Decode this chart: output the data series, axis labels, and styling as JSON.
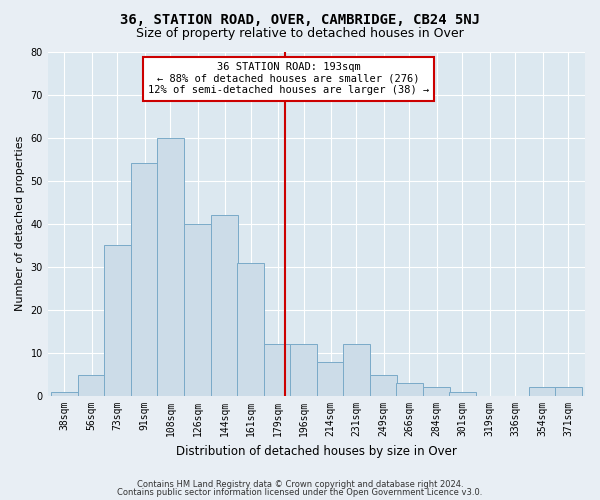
{
  "title": "36, STATION ROAD, OVER, CAMBRIDGE, CB24 5NJ",
  "subtitle": "Size of property relative to detached houses in Over",
  "xlabel": "Distribution of detached houses by size in Over",
  "ylabel": "Number of detached properties",
  "bar_color": "#ccdce8",
  "bar_edge_color": "#7aaac8",
  "vline_color": "#cc0000",
  "vline_x": 193,
  "annotation_text": "36 STATION ROAD: 193sqm\n← 88% of detached houses are smaller (276)\n12% of semi-detached houses are larger (38) →",
  "annotation_box_color": "#ffffff",
  "annotation_box_edge": "#cc0000",
  "bins": [
    38,
    56,
    73,
    91,
    108,
    126,
    144,
    161,
    179,
    196,
    214,
    231,
    249,
    266,
    284,
    301,
    319,
    336,
    354,
    371,
    389
  ],
  "heights": [
    1,
    5,
    35,
    54,
    60,
    40,
    42,
    31,
    12,
    12,
    8,
    12,
    5,
    3,
    2,
    1,
    0,
    0,
    2,
    2
  ],
  "ylim": [
    0,
    80
  ],
  "yticks": [
    0,
    10,
    20,
    30,
    40,
    50,
    60,
    70,
    80
  ],
  "bg_color": "#dce8f0",
  "grid_color": "#ffffff",
  "footer1": "Contains HM Land Registry data © Crown copyright and database right 2024.",
  "footer2": "Contains public sector information licensed under the Open Government Licence v3.0.",
  "title_fontsize": 10,
  "subtitle_fontsize": 9,
  "annotation_fontsize": 7.5,
  "tick_fontsize": 7,
  "ylabel_fontsize": 8,
  "xlabel_fontsize": 8.5,
  "footer_fontsize": 6
}
